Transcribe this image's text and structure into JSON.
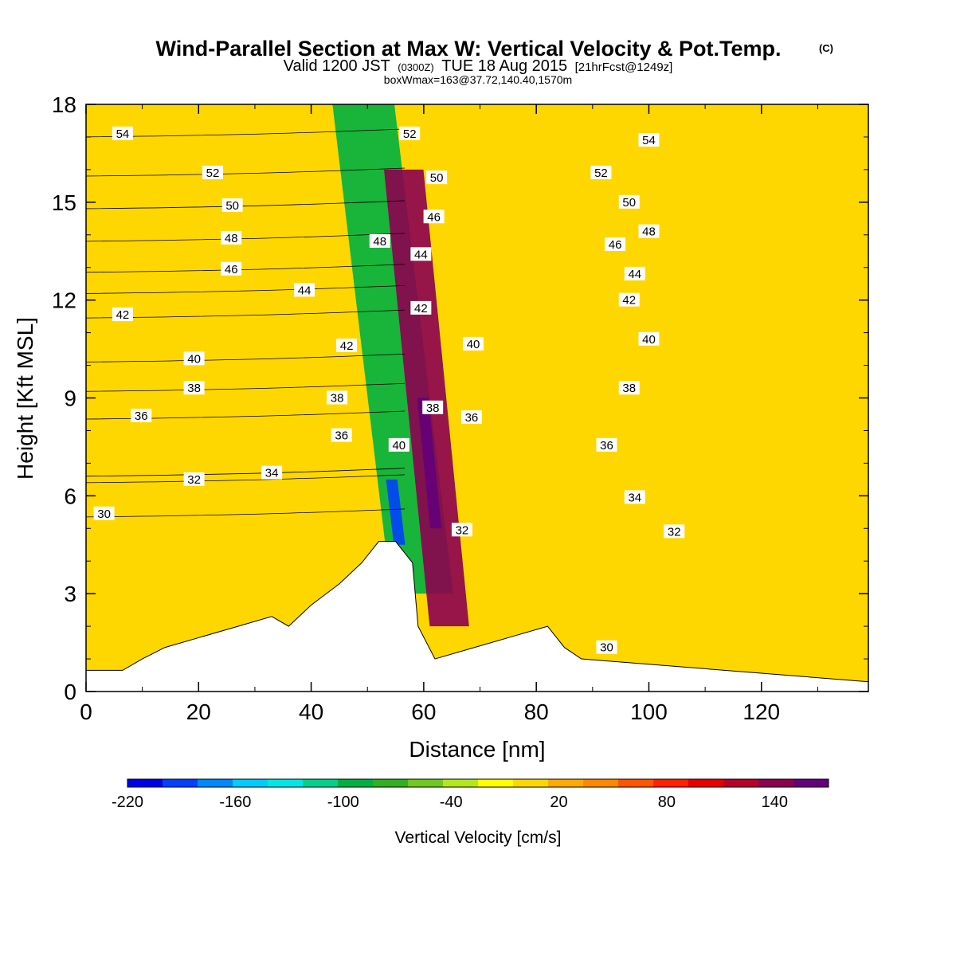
{
  "chart_data": {
    "type": "heatmap",
    "title": "Wind-Parallel Section at Max W: Vertical Velocity & Pot.Temp.",
    "title_mark": "(C)",
    "subtitle": {
      "prefix": "Valid 1200 JST",
      "utc": "(0300Z)",
      "date": "TUE 18 Aug 2015",
      "fcst": "[21hrFcst@1249z]"
    },
    "subtitle2": "boxWmax=163@37.72,140.40,1570m",
    "xlabel": "Distance [nm]",
    "ylabel": "Height [Kft MSL]",
    "xlim": [
      0,
      139
    ],
    "ylim": [
      0,
      18
    ],
    "xticks": [
      0,
      20,
      40,
      60,
      80,
      100,
      120
    ],
    "yticks": [
      0,
      3,
      6,
      9,
      12,
      15,
      18
    ],
    "colorbar": {
      "label": "Vertical Velocity [cm/s]",
      "tick_labels": [
        "-220",
        "-160",
        "-100",
        "-40",
        "20",
        "80",
        "140"
      ],
      "tick_values": [
        -220,
        -160,
        -100,
        -40,
        20,
        80,
        140
      ],
      "range": [
        -220,
        170
      ],
      "colors": [
        "#0000e6",
        "#0040ff",
        "#0088ff",
        "#00ccff",
        "#00e6e6",
        "#00d08c",
        "#00b040",
        "#30b020",
        "#70c820",
        "#b4e61e",
        "#ffff00",
        "#ffd700",
        "#ffaa00",
        "#ff8800",
        "#ff5500",
        "#ff2200",
        "#e60000",
        "#b4002a",
        "#8c0050",
        "#64007a"
      ]
    },
    "background_value": 8,
    "features": [
      {
        "name": "downdraft band",
        "x": [
          49,
          60
        ],
        "y": [
          3,
          18
        ],
        "value": -100
      },
      {
        "name": "updraft band",
        "x": [
          57,
          64
        ],
        "y": [
          2,
          16
        ],
        "value": 140
      },
      {
        "name": "downdraft core",
        "x": [
          54,
          56
        ],
        "y": [
          4.5,
          6.5
        ],
        "value": -200
      },
      {
        "name": "updraft core",
        "x": [
          60,
          62
        ],
        "y": [
          5,
          9
        ],
        "value": 163
      }
    ],
    "terrain": {
      "x": [
        0,
        6.5,
        10,
        14,
        20,
        27,
        33,
        36,
        40,
        45,
        49,
        52,
        55,
        58,
        59,
        62,
        68,
        75,
        82,
        85,
        88,
        139
      ],
      "y": [
        0.65,
        0.65,
        1.0,
        1.35,
        1.65,
        2.0,
        2.3,
        2.0,
        2.65,
        3.3,
        3.95,
        4.6,
        4.6,
        3.95,
        2.0,
        1.0,
        1.3,
        1.65,
        2.0,
        1.35,
        1.0,
        0.3
      ]
    },
    "contours": {
      "variable": "Potential temperature",
      "labels": [
        {
          "text": "54",
          "x": 6.5,
          "y": 17.1
        },
        {
          "text": "52",
          "x": 22.5,
          "y": 15.9
        },
        {
          "text": "50",
          "x": 26.0,
          "y": 14.9
        },
        {
          "text": "48",
          "x": 25.8,
          "y": 13.9
        },
        {
          "text": "46",
          "x": 25.8,
          "y": 12.95
        },
        {
          "text": "42",
          "x": 6.5,
          "y": 11.55
        },
        {
          "text": "44",
          "x": 38.8,
          "y": 12.3
        },
        {
          "text": "40",
          "x": 19.2,
          "y": 10.2
        },
        {
          "text": "38",
          "x": 19.2,
          "y": 9.3
        },
        {
          "text": "36",
          "x": 9.8,
          "y": 8.45
        },
        {
          "text": "34",
          "x": 33.0,
          "y": 6.7
        },
        {
          "text": "32",
          "x": 19.2,
          "y": 6.5
        },
        {
          "text": "30",
          "x": 3.2,
          "y": 5.45
        },
        {
          "text": "48",
          "x": 52.2,
          "y": 13.8
        },
        {
          "text": "42",
          "x": 46.3,
          "y": 10.6
        },
        {
          "text": "38",
          "x": 44.6,
          "y": 9.0
        },
        {
          "text": "36",
          "x": 45.4,
          "y": 7.85
        },
        {
          "text": "40",
          "x": 55.6,
          "y": 7.55
        },
        {
          "text": "52",
          "x": 57.5,
          "y": 17.1
        },
        {
          "text": "50",
          "x": 62.3,
          "y": 15.75
        },
        {
          "text": "46",
          "x": 61.8,
          "y": 14.55
        },
        {
          "text": "44",
          "x": 59.5,
          "y": 13.4
        },
        {
          "text": "42",
          "x": 59.5,
          "y": 11.75
        },
        {
          "text": "40",
          "x": 68.8,
          "y": 10.65
        },
        {
          "text": "38",
          "x": 61.6,
          "y": 8.7
        },
        {
          "text": "36",
          "x": 68.5,
          "y": 8.4
        },
        {
          "text": "32",
          "x": 66.8,
          "y": 4.95
        },
        {
          "text": "54",
          "x": 100.0,
          "y": 16.9
        },
        {
          "text": "52",
          "x": 91.5,
          "y": 15.9
        },
        {
          "text": "50",
          "x": 96.5,
          "y": 15.0
        },
        {
          "text": "48",
          "x": 100.0,
          "y": 14.1
        },
        {
          "text": "46",
          "x": 94.0,
          "y": 13.7
        },
        {
          "text": "44",
          "x": 97.5,
          "y": 12.8
        },
        {
          "text": "42",
          "x": 96.5,
          "y": 12.0
        },
        {
          "text": "40",
          "x": 100.0,
          "y": 10.8
        },
        {
          "text": "38",
          "x": 96.5,
          "y": 9.3
        },
        {
          "text": "36",
          "x": 92.5,
          "y": 7.55
        },
        {
          "text": "34",
          "x": 97.5,
          "y": 5.95
        },
        {
          "text": "32",
          "x": 104.5,
          "y": 4.9
        },
        {
          "text": "30",
          "x": 92.5,
          "y": 1.35
        }
      ]
    }
  }
}
